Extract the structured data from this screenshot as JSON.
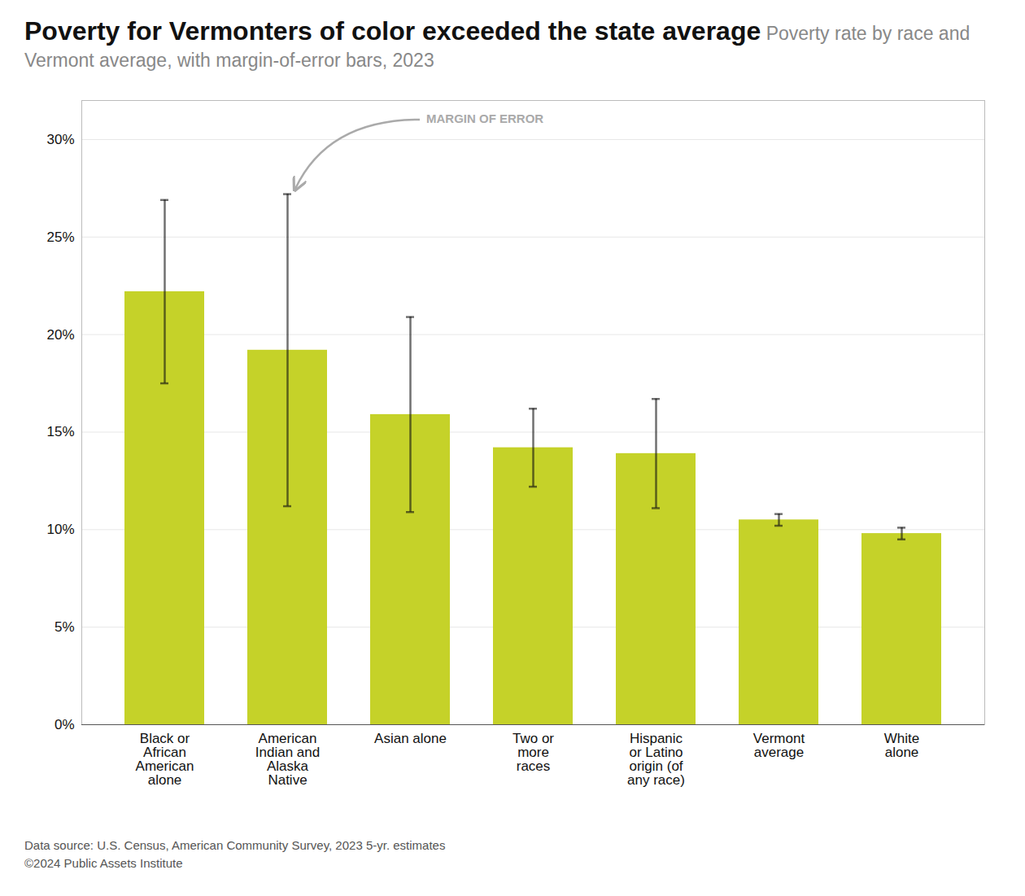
{
  "chart_data": {
    "type": "bar",
    "title": "Poverty for Vermonters of color exceeded the state average",
    "subtitle": "Poverty rate by race and Vermont average, with margin-of-error bars, 2023",
    "categories": [
      "Black or\nAfrican\nAmerican\nalone",
      "American\nIndian and\nAlaska\nNative",
      "Asian alone",
      "Two or\nmore\nraces",
      "Hispanic\nor Latino\norigin (of\nany race)",
      "Vermont\naverage",
      "White\nalone"
    ],
    "values": [
      0.222,
      0.192,
      0.159,
      0.142,
      0.139,
      0.105,
      0.098
    ],
    "error_lower": [
      0.175,
      0.112,
      0.109,
      0.122,
      0.111,
      0.102,
      0.095
    ],
    "error_upper": [
      0.269,
      0.272,
      0.209,
      0.162,
      0.167,
      0.108,
      0.101
    ],
    "color": "#c5d229",
    "ylim": [
      0,
      0.32
    ],
    "yticks": [
      {
        "value": 0.0,
        "label": "0%"
      },
      {
        "value": 0.05,
        "label": "5%"
      },
      {
        "value": 0.1,
        "label": "10%"
      },
      {
        "value": 0.15,
        "label": "15%"
      },
      {
        "value": 0.2,
        "label": "20%"
      },
      {
        "value": 0.25,
        "label": "25%"
      },
      {
        "value": 0.3,
        "label": "30%"
      }
    ],
    "grid": true,
    "annotations": [
      "MARGIN OF ERROR"
    ],
    "footnotes": [
      "Data source: U.S. Census, American Community Survey, 2023 5-yr. estimates",
      "©2024 Public Assets Institute"
    ]
  }
}
